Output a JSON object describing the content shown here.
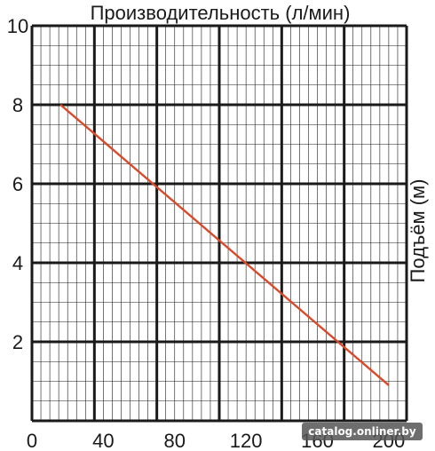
{
  "chart_data": {
    "type": "line",
    "title": "Производительность (л/мин)",
    "xlabel": "",
    "ylabel": "Подъём (м)",
    "xlim": [
      0,
      210
    ],
    "ylim": [
      0,
      10
    ],
    "x_ticks": [
      "0",
      "40",
      "80",
      "120",
      "160",
      "200"
    ],
    "y_ticks": [
      "2",
      "4",
      "6",
      "8",
      "10"
    ],
    "grid": true,
    "series": [
      {
        "x": [
          16,
          200
        ],
        "y": [
          8.0,
          0.9
        ]
      }
    ],
    "colors": {
      "line": "#d94a2a",
      "grid": "#1a1a1a"
    }
  },
  "watermark": {
    "text": "catalog.onliner.by"
  }
}
